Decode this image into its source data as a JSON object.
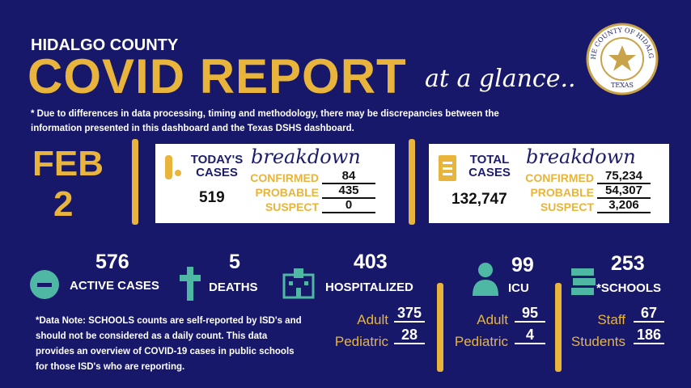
{
  "header": {
    "county": "HIDALGO COUNTY",
    "title": "COVID REPORT",
    "tagline": "at a glance..",
    "seal_top": "THE COUNTY OF HIDALGO",
    "seal_bottom": "TEXAS"
  },
  "disclaimer": "* Due to differences in data processing, timing and methodology, there may be discrepancies between the information presented in this dashboard and the Texas DSHS dashboard.",
  "date": {
    "month": "FEB",
    "day": "2"
  },
  "today": {
    "label": "TODAY'S CASES",
    "total": "519",
    "script": "breakdown",
    "rows": [
      {
        "label": "CONFIRMED",
        "value": "84"
      },
      {
        "label": "PROBABLE",
        "value": "435"
      },
      {
        "label": "SUSPECT",
        "value": "0"
      }
    ]
  },
  "total": {
    "label": "TOTAL CASES",
    "total": "132,747",
    "script": "breakdown",
    "rows": [
      {
        "label": "CONFIRMED",
        "value": "75,234"
      },
      {
        "label": "PROBABLE",
        "value": "54,307"
      },
      {
        "label": "SUSPECT",
        "value": "3,206"
      }
    ]
  },
  "stats": [
    {
      "value": "576",
      "label": "ACTIVE CASES"
    },
    {
      "value": "5",
      "label": "DEATHS"
    },
    {
      "value": "403",
      "label": "HOSPITALIZED"
    },
    {
      "value": "99",
      "label": "ICU"
    },
    {
      "value": "253",
      "label": "*SCHOOLS"
    }
  ],
  "hospitalized_breakdown": [
    {
      "label": "Adult",
      "value": "375"
    },
    {
      "label": "Pediatric",
      "value": "28"
    }
  ],
  "icu_breakdown": [
    {
      "label": "Adult",
      "value": "95"
    },
    {
      "label": "Pediatric",
      "value": "4"
    }
  ],
  "schools_breakdown": [
    {
      "label": "Staff",
      "value": "67"
    },
    {
      "label": "Students",
      "value": "186"
    }
  ],
  "note": "*Data Note: SCHOOLS counts are self-reported by ISD's and should not be considered as a daily count. This data provides an overview of COVID-19 cases in public schools for those ISD's who are reporting."
}
